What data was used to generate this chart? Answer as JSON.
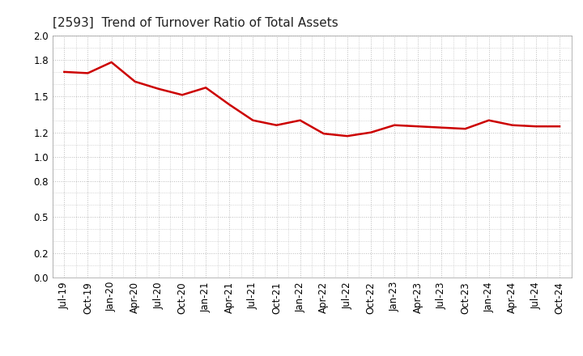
{
  "title": "[2593]  Trend of Turnover Ratio of Total Assets",
  "x_labels": [
    "Jul-19",
    "Oct-19",
    "Jan-20",
    "Apr-20",
    "Jul-20",
    "Oct-20",
    "Jan-21",
    "Apr-21",
    "Jul-21",
    "Oct-21",
    "Jan-22",
    "Apr-22",
    "Jul-22",
    "Oct-22",
    "Jan-23",
    "Apr-23",
    "Jul-23",
    "Oct-23",
    "Jan-24",
    "Apr-24",
    "Jul-24",
    "Oct-24"
  ],
  "y_values": [
    1.7,
    1.69,
    1.78,
    1.62,
    1.56,
    1.51,
    1.57,
    1.43,
    1.3,
    1.26,
    1.3,
    1.19,
    1.17,
    1.2,
    1.26,
    1.25,
    1.24,
    1.23,
    1.3,
    1.26,
    1.25,
    1.25
  ],
  "line_color": "#cc0000",
  "line_width": 1.8,
  "ylim": [
    0.0,
    2.0
  ],
  "yticks": [
    0.0,
    0.2,
    0.5,
    0.8,
    1.0,
    1.2,
    1.5,
    1.8,
    2.0
  ],
  "ytick_labels": [
    "0.0",
    "0.2",
    "0.5",
    "0.8",
    "1.0",
    "1.2",
    "1.5",
    "1.8",
    "2.0"
  ],
  "background_color": "#ffffff",
  "grid_color": "#bbbbbb",
  "title_fontsize": 11,
  "tick_fontsize": 8.5
}
